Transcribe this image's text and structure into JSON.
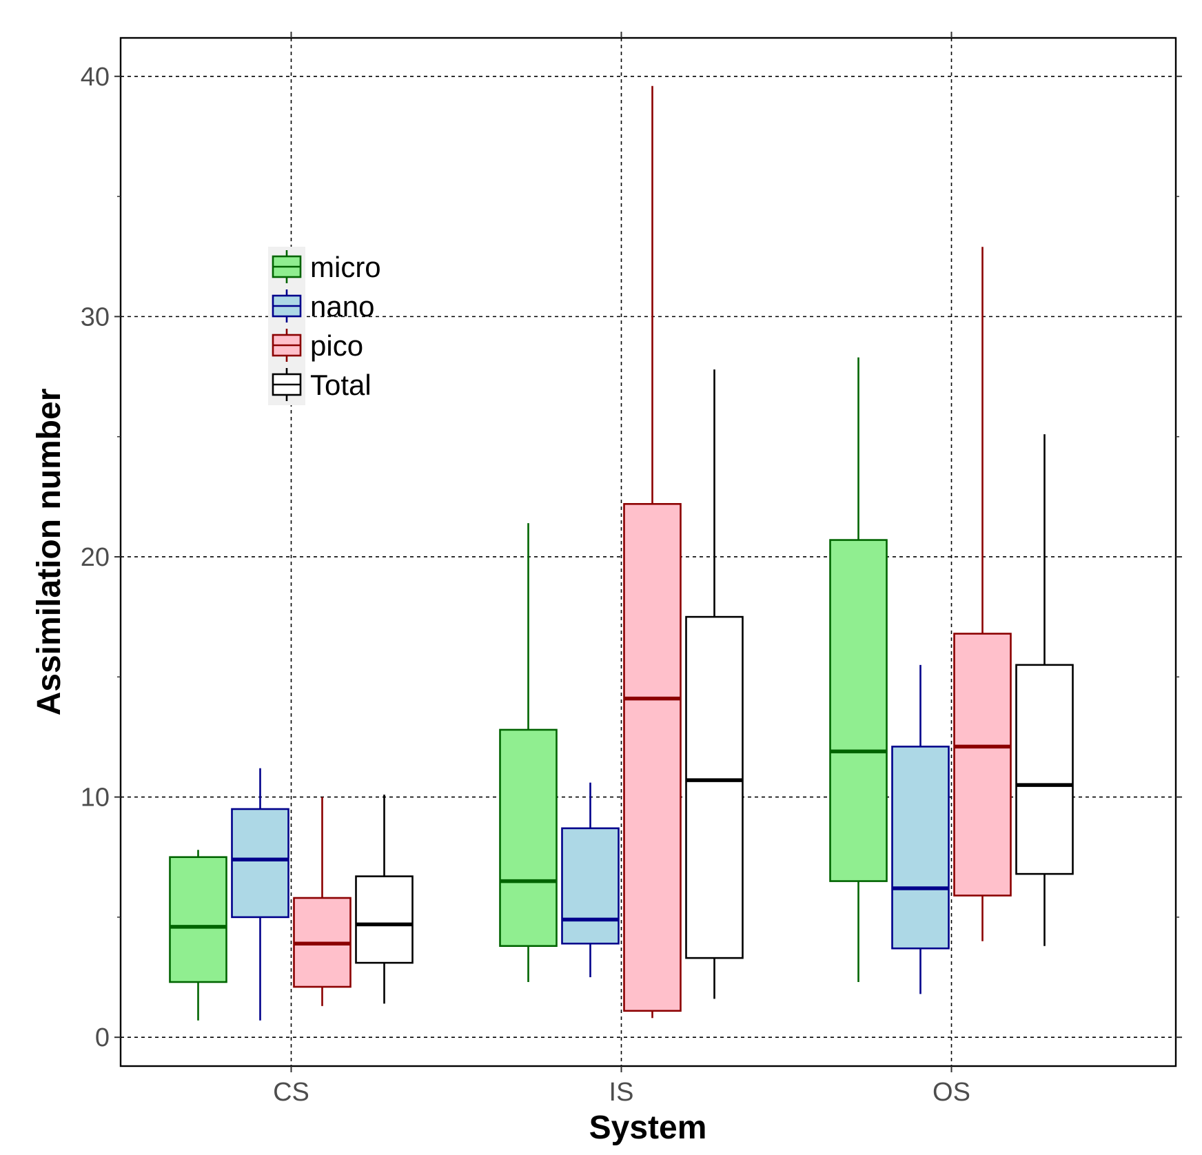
{
  "chart_data": {
    "type": "box",
    "xlabel": "System",
    "ylabel": "Assimilation number",
    "categories": [
      "CS",
      "IS",
      "OS"
    ],
    "ylim": [
      -1.2,
      41.6
    ],
    "yticks": [
      0,
      10,
      20,
      30,
      40
    ],
    "grid": "dashed major lines on both axes",
    "legend_position": "upper-left inside plot",
    "series": [
      {
        "name": "micro",
        "fill": "#90EE90",
        "stroke": "#006400",
        "boxes": [
          {
            "category": "CS",
            "min": 0.7,
            "q1": 2.3,
            "median": 4.6,
            "q3": 7.5,
            "max": 7.8
          },
          {
            "category": "IS",
            "min": 2.3,
            "q1": 3.8,
            "median": 6.5,
            "q3": 12.8,
            "max": 21.4
          },
          {
            "category": "OS",
            "min": 2.3,
            "q1": 6.5,
            "median": 11.9,
            "q3": 20.7,
            "max": 28.3
          }
        ]
      },
      {
        "name": "nano",
        "fill": "#ADD8E6",
        "stroke": "#00008B",
        "boxes": [
          {
            "category": "CS",
            "min": 0.7,
            "q1": 5.0,
            "median": 7.4,
            "q3": 9.5,
            "max": 11.2
          },
          {
            "category": "IS",
            "min": 2.5,
            "q1": 3.9,
            "median": 4.9,
            "q3": 8.7,
            "max": 10.6
          },
          {
            "category": "OS",
            "min": 1.8,
            "q1": 3.7,
            "median": 6.2,
            "q3": 12.1,
            "max": 15.5
          }
        ]
      },
      {
        "name": "pico",
        "fill": "#FFC0CB",
        "stroke": "#8B0000",
        "boxes": [
          {
            "category": "CS",
            "min": 1.3,
            "q1": 2.1,
            "median": 3.9,
            "q3": 5.8,
            "max": 10.0
          },
          {
            "category": "IS",
            "min": 0.8,
            "q1": 1.1,
            "median": 14.1,
            "q3": 22.2,
            "max": 39.6
          },
          {
            "category": "OS",
            "min": 4.0,
            "q1": 5.9,
            "median": 12.1,
            "q3": 16.8,
            "max": 32.9
          }
        ]
      },
      {
        "name": "Total",
        "fill": "#FFFFFF",
        "stroke": "#000000",
        "boxes": [
          {
            "category": "CS",
            "min": 1.4,
            "q1": 3.1,
            "median": 4.7,
            "q3": 6.7,
            "max": 10.1
          },
          {
            "category": "IS",
            "min": 1.6,
            "q1": 3.3,
            "median": 10.7,
            "q3": 17.5,
            "max": 27.8
          },
          {
            "category": "OS",
            "min": 3.8,
            "q1": 6.8,
            "median": 10.5,
            "q3": 15.5,
            "max": 25.1
          }
        ]
      }
    ]
  }
}
